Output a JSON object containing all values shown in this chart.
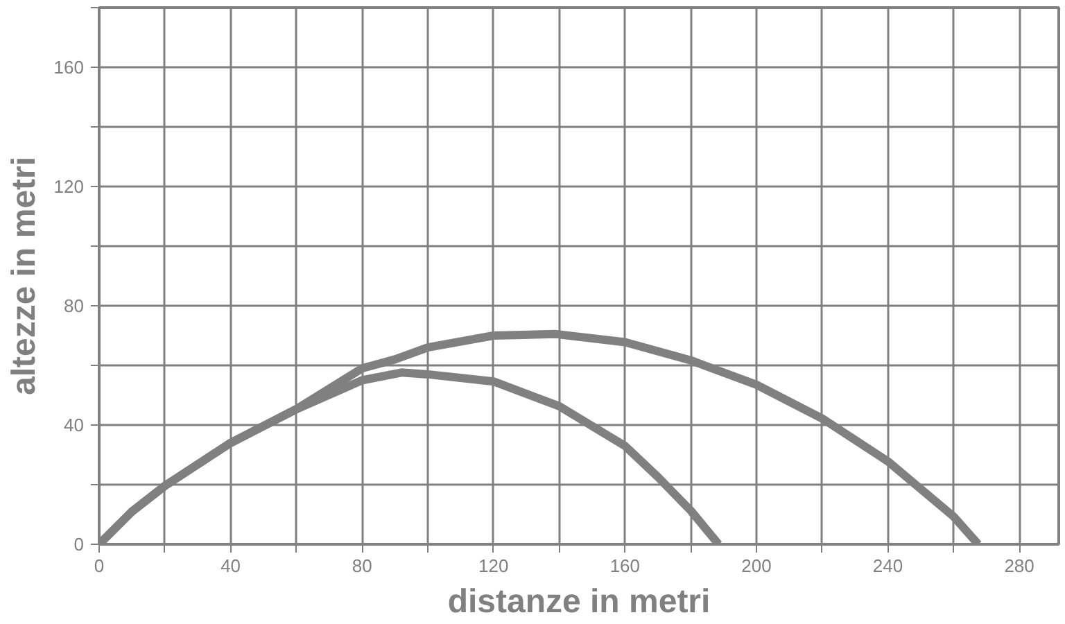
{
  "chart_data": {
    "type": "line",
    "xlabel": "distanze in metri",
    "ylabel": "altezze in metri",
    "xlim": [
      0,
      292
    ],
    "ylim": [
      0,
      180
    ],
    "xticks": [
      0,
      {
        "value": 20,
        "label": null
      },
      40,
      {
        "value": 60,
        "label": null
      },
      80,
      {
        "value": 100,
        "label": null
      },
      120,
      {
        "value": 140,
        "label": null
      },
      160,
      {
        "value": 180,
        "label": null
      },
      200,
      {
        "value": 220,
        "label": null
      },
      240,
      {
        "value": 260,
        "label": null
      },
      280
    ],
    "yticks": [
      0,
      {
        "value": 20,
        "label": null
      },
      40,
      {
        "value": 60,
        "label": null
      },
      80,
      {
        "value": 100,
        "label": null
      },
      120,
      {
        "value": 140,
        "label": null
      },
      160,
      {
        "value": 180,
        "label": null
      }
    ],
    "grid": true,
    "marker": "none",
    "line_style": "solid",
    "series": [
      {
        "color": "#808080",
        "x": [
          0,
          10,
          20,
          40,
          60,
          80,
          92,
          100,
          120,
          140,
          160,
          170,
          180,
          188.5
        ],
        "values": [
          0,
          11,
          19.6,
          34,
          45.3,
          55,
          57.6,
          57,
          54.6,
          46.3,
          33,
          22.6,
          11.3,
          0
        ]
      },
      {
        "color": "#808080",
        "x": [
          0,
          10,
          20,
          40,
          60,
          80,
          90,
          100,
          120,
          139,
          160,
          180,
          200,
          220,
          240,
          260,
          267.5
        ],
        "values": [
          0,
          11,
          19.6,
          34,
          45.3,
          59,
          62,
          66,
          70,
          70.5,
          67.8,
          61.7,
          53.5,
          42.2,
          27.8,
          9.3,
          0
        ]
      }
    ]
  }
}
